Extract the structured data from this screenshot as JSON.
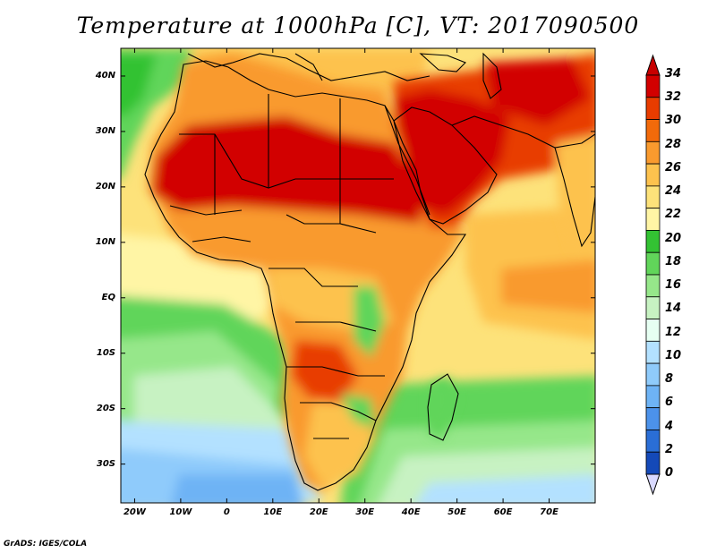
{
  "title": "Temperature at 1000hPa [C], VT: 2017090500",
  "footer": "GrADS: IGES/COLA",
  "map": {
    "lon_range": [
      -23,
      80
    ],
    "lat_range": [
      -37,
      45
    ],
    "lat_ticks": [
      "40N",
      "30N",
      "20N",
      "10N",
      "EQ",
      "10S",
      "20S",
      "30S"
    ],
    "lon_ticks": [
      "20W",
      "10W",
      "0",
      "10E",
      "20E",
      "30E",
      "40E",
      "50E",
      "60E",
      "70E"
    ]
  },
  "colorbar": {
    "labels": [
      "34",
      "32",
      "30",
      "28",
      "26",
      "24",
      "22",
      "20",
      "18",
      "16",
      "14",
      "12",
      "10",
      "8",
      "6",
      "4",
      "2",
      "0"
    ],
    "colors": [
      "#d20000",
      "#e83c00",
      "#f26a0a",
      "#f99a2e",
      "#fdc24e",
      "#fde27a",
      "#fff5a5",
      "#33c233",
      "#61d55a",
      "#96e78a",
      "#c7f2c2",
      "#e6fff2",
      "#b3e1ff",
      "#8fcbfb",
      "#6eb3f5",
      "#4c92ea",
      "#2a6ed6",
      "#1449b8",
      "#0d2d8f",
      "#0a0d6a"
    ],
    "min_color": "#d9d9ff",
    "max_color": "#c80000"
  }
}
